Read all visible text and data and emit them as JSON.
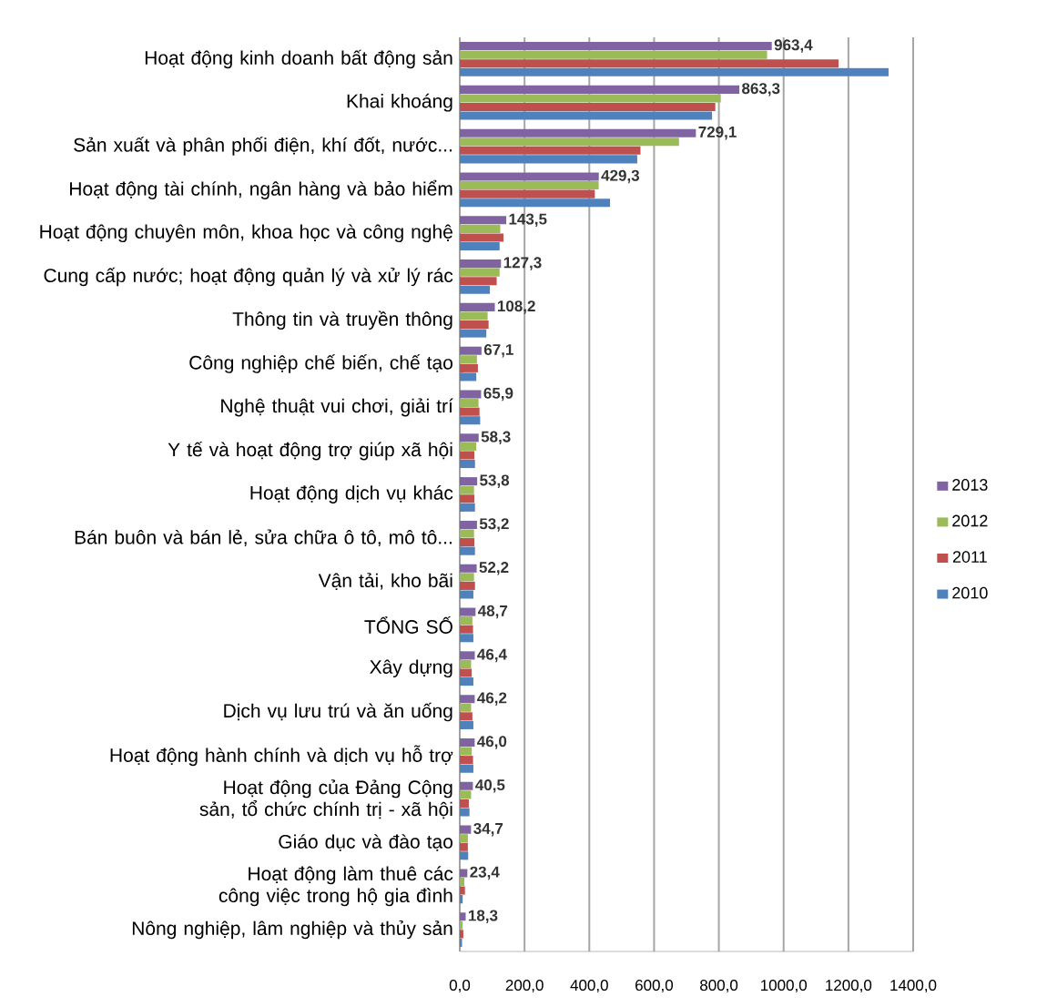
{
  "chart_data": {
    "type": "bar",
    "orientation": "horizontal",
    "categories": [
      "Hoạt động kinh doanh bất động sản",
      "Khai khoáng",
      "Sản xuất và phân phối điện, khí đốt, nước...",
      "Hoạt động tài chính, ngân hàng và bảo hiểm",
      "Hoạt động chuyên môn, khoa học và công nghệ",
      "Cung cấp nước; hoạt động quản lý và xử lý rác",
      "Thông tin và truyền thông",
      "Công nghiệp chế biến, chế tạo",
      "Nghệ thuật vui chơi, giải trí",
      "Y tế và hoạt động trợ giúp xã hội",
      "Hoạt động dịch vụ khác",
      "Bán buôn và bán lẻ, sửa chữa ô tô, mô tô...",
      "Vận tải, kho bãi",
      "TỔNG SỐ",
      "Xây dựng",
      "Dịch vụ lưu trú và ăn uống",
      "Hoạt động hành chính và dịch vụ hỗ trợ",
      "Hoạt động của Đảng Cộng sản, tổ chức chính trị - xã hội",
      "Giáo dục và đào tạo",
      "Hoạt động làm thuê các công việc trong hộ gia đình",
      "Nông nghiệp, lâm nghiệp và thủy sản"
    ],
    "series": [
      {
        "name": "2013",
        "color": "#8064a2",
        "values": [
          963.4,
          863.3,
          729.1,
          429.3,
          143.5,
          127.3,
          108.2,
          67.1,
          65.9,
          58.3,
          53.8,
          53.2,
          52.2,
          48.7,
          46.4,
          46.2,
          46.0,
          40.5,
          34.7,
          23.4,
          18.3
        ],
        "value_labels": [
          "963,4",
          "863,3",
          "729,1",
          "429,3",
          "143,5",
          "127,3",
          "108,2",
          "67,1",
          "65,9",
          "58,3",
          "53,8",
          "53,2",
          "52,2",
          "48,7",
          "46,4",
          "46,2",
          "46,0",
          "40,5",
          "34,7",
          "23,4",
          "18,3"
        ]
      },
      {
        "name": "2012",
        "color": "#9bbb59",
        "values": [
          949,
          806,
          677,
          429,
          125,
          123,
          86,
          53,
          58,
          51,
          44,
          44,
          44,
          39,
          35,
          35,
          37,
          35,
          25,
          14,
          9
        ]
      },
      {
        "name": "2011",
        "color": "#c0504d",
        "values": [
          1170,
          789,
          558,
          417,
          135,
          114,
          89,
          56,
          61,
          45,
          45,
          45,
          47,
          41,
          37,
          39,
          41,
          28,
          25,
          16,
          11
        ]
      },
      {
        "name": "2010",
        "color": "#4f81bd",
        "values": [
          1324,
          779,
          548,
          464,
          123,
          93,
          82,
          51,
          63,
          47,
          47,
          47,
          42,
          42,
          42,
          42,
          42,
          30,
          26,
          9,
          7
        ]
      }
    ],
    "xlim": [
      0,
      1400
    ],
    "xticks": [
      {
        "value": 0,
        "label": "0,0"
      },
      {
        "value": 200,
        "label": "200,0"
      },
      {
        "value": 400,
        "label": "400,0"
      },
      {
        "value": 600,
        "label": "600,0"
      },
      {
        "value": 800,
        "label": "800,0"
      },
      {
        "value": 1000,
        "label": "1000,0"
      },
      {
        "value": 1200,
        "label": "1200,0"
      },
      {
        "value": 1400,
        "label": "1400,0"
      }
    ],
    "grid": "x",
    "legend": "right"
  }
}
